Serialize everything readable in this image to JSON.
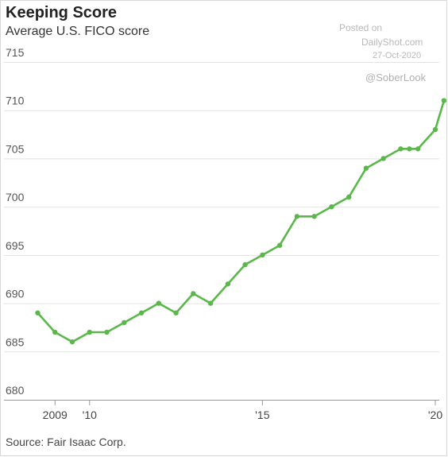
{
  "title": "Keeping Score",
  "subtitle": "Average U.S. FICO score",
  "source": "Source: Fair Isaac Corp.",
  "watermark": {
    "line1": "Posted on",
    "line2": "DailyShot.com",
    "line3": "27-Oct-2020",
    "handle": "@SoberLook"
  },
  "colors": {
    "line": "#5ab84a",
    "grid": "#e2e2e2",
    "axis": "#999999"
  },
  "chart_data": {
    "type": "line",
    "title": "Keeping Score",
    "subtitle": "Average U.S. FICO score",
    "ylim": [
      680,
      715
    ],
    "yticks": [
      680,
      685,
      690,
      695,
      700,
      705,
      710,
      715
    ],
    "xlim": [
      2008.92,
      2020.5
    ],
    "xticks": [
      {
        "x": 2009.5,
        "label": "2009"
      },
      {
        "x": 2010.5,
        "label": "'10"
      },
      {
        "x": 2015.5,
        "label": "'15"
      },
      {
        "x": 2020.5,
        "label": "'20"
      }
    ],
    "grid": true,
    "series": [
      {
        "points": [
          {
            "x": 2009.0,
            "y": 689
          },
          {
            "x": 2009.5,
            "y": 687
          },
          {
            "x": 2010.0,
            "y": 686
          },
          {
            "x": 2010.5,
            "y": 687
          },
          {
            "x": 2011.0,
            "y": 687
          },
          {
            "x": 2011.5,
            "y": 688
          },
          {
            "x": 2012.0,
            "y": 689
          },
          {
            "x": 2012.5,
            "y": 690
          },
          {
            "x": 2013.0,
            "y": 689
          },
          {
            "x": 2013.5,
            "y": 691
          },
          {
            "x": 2014.0,
            "y": 690
          },
          {
            "x": 2014.5,
            "y": 692
          },
          {
            "x": 2015.0,
            "y": 694
          },
          {
            "x": 2015.5,
            "y": 695
          },
          {
            "x": 2016.0,
            "y": 696
          },
          {
            "x": 2016.5,
            "y": 699
          },
          {
            "x": 2017.0,
            "y": 699
          },
          {
            "x": 2017.5,
            "y": 700
          },
          {
            "x": 2018.0,
            "y": 701
          },
          {
            "x": 2018.5,
            "y": 704
          },
          {
            "x": 2019.0,
            "y": 705
          },
          {
            "x": 2019.5,
            "y": 706
          },
          {
            "x": 2019.75,
            "y": 706
          },
          {
            "x": 2020.0,
            "y": 706
          },
          {
            "x": 2020.5,
            "y": 708
          },
          {
            "x": 2020.75,
            "y": 711
          }
        ]
      }
    ]
  }
}
